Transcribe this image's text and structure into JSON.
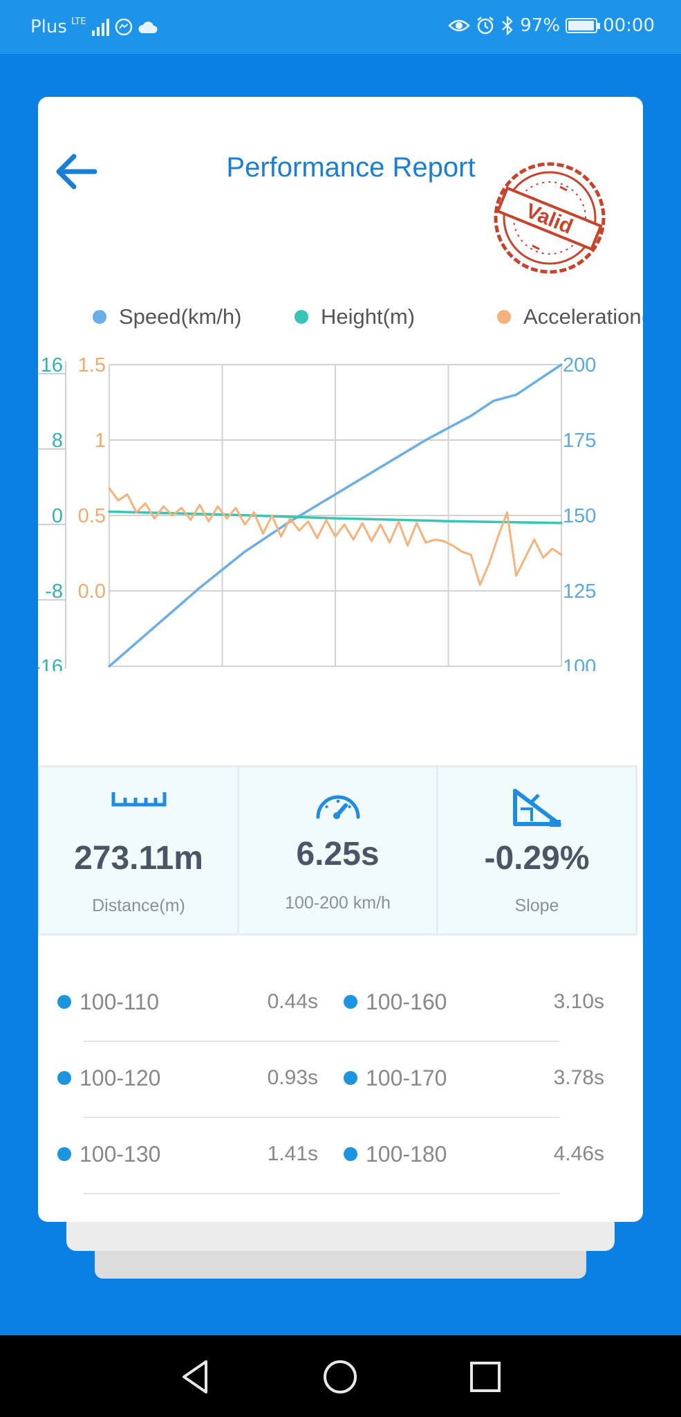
{
  "status_bar": {
    "carrier": "Plus",
    "network": "LTE",
    "battery": "97%",
    "battery_level": 0.97,
    "time": "00:00"
  },
  "header": {
    "title": "Performance Report",
    "stamp_text": "Valid"
  },
  "legend": [
    {
      "label": "Speed(km/h)",
      "color": "#6aaee6"
    },
    {
      "label": "Height(m)",
      "color": "#39c4b8"
    },
    {
      "label": "Acceleration(g)",
      "color": "#f6b27a"
    }
  ],
  "chart_data": {
    "type": "line",
    "series": [
      {
        "name": "Speed(km/h)",
        "axis": "right",
        "color": "#6aaee6",
        "x": [
          0,
          0.1,
          0.2,
          0.3,
          0.4,
          0.5,
          0.6,
          0.7,
          0.8,
          0.85,
          0.9,
          1.0
        ],
        "values": [
          100,
          113,
          126,
          138,
          148,
          157,
          166,
          175,
          183,
          188,
          190,
          200
        ]
      },
      {
        "name": "Height(m)",
        "axis": "left-outer",
        "color": "#39c4b8",
        "x": [
          0,
          0.25,
          0.5,
          0.75,
          1.0
        ],
        "values": [
          0.4,
          0.1,
          -0.3,
          -0.6,
          -0.8
        ]
      },
      {
        "name": "Acceleration(g)",
        "axis": "left-inner",
        "color": "#f6b27a",
        "x": [
          0,
          0.02,
          0.04,
          0.06,
          0.08,
          0.1,
          0.12,
          0.14,
          0.16,
          0.18,
          0.2,
          0.22,
          0.24,
          0.26,
          0.28,
          0.3,
          0.32,
          0.34,
          0.36,
          0.38,
          0.4,
          0.42,
          0.44,
          0.46,
          0.48,
          0.5,
          0.52,
          0.54,
          0.56,
          0.58,
          0.6,
          0.62,
          0.64,
          0.66,
          0.68,
          0.7,
          0.72,
          0.74,
          0.76,
          0.78,
          0.8,
          0.82,
          0.84,
          0.86,
          0.88,
          0.9,
          0.92,
          0.94,
          0.96,
          0.98,
          1.0
        ],
        "values": [
          0.68,
          0.6,
          0.64,
          0.52,
          0.58,
          0.48,
          0.56,
          0.5,
          0.55,
          0.47,
          0.57,
          0.46,
          0.56,
          0.48,
          0.55,
          0.44,
          0.52,
          0.38,
          0.5,
          0.36,
          0.48,
          0.4,
          0.46,
          0.35,
          0.47,
          0.36,
          0.44,
          0.34,
          0.45,
          0.33,
          0.44,
          0.32,
          0.46,
          0.3,
          0.45,
          0.32,
          0.34,
          0.33,
          0.3,
          0.26,
          0.24,
          0.04,
          0.18,
          0.36,
          0.52,
          0.1,
          0.22,
          0.34,
          0.22,
          0.28,
          0.24
        ]
      }
    ],
    "axes": {
      "left_outer": {
        "ticks": [
          "16",
          "8",
          "0",
          "-8",
          "-16"
        ],
        "range": [
          -16,
          16
        ],
        "color": "#2fb4ad"
      },
      "left_inner": {
        "ticks": [
          "1.5",
          "1",
          "0.5",
          "0.0"
        ],
        "range": [
          -0.5,
          1.5
        ],
        "color": "#f3a96b"
      },
      "right": {
        "ticks": [
          "200",
          "175",
          "150",
          "125",
          "100"
        ],
        "range": [
          100,
          200
        ],
        "color": "#5aa8e2"
      }
    },
    "grid": true,
    "legend_position": "top"
  },
  "stats": [
    {
      "icon": "ruler-icon",
      "value": "273.11m",
      "label": "Distance(m)"
    },
    {
      "icon": "speedometer-icon",
      "value": "6.25s",
      "label": "100-200 km/h"
    },
    {
      "icon": "slope-icon",
      "value": "-0.29%",
      "label": "Slope"
    }
  ],
  "splits": [
    [
      {
        "range": "100-110",
        "time": "0.44s"
      },
      {
        "range": "100-160",
        "time": "3.10s"
      }
    ],
    [
      {
        "range": "100-120",
        "time": "0.93s"
      },
      {
        "range": "100-170",
        "time": "3.78s"
      }
    ],
    [
      {
        "range": "100-130",
        "time": "1.41s"
      },
      {
        "range": "100-180",
        "time": "4.46s"
      }
    ]
  ],
  "colors": {
    "brand_blue": "#0a7fe4",
    "title_blue": "#1a7fd4",
    "stamp_red": "#c8432c",
    "split_dot": "#1b95e0"
  }
}
